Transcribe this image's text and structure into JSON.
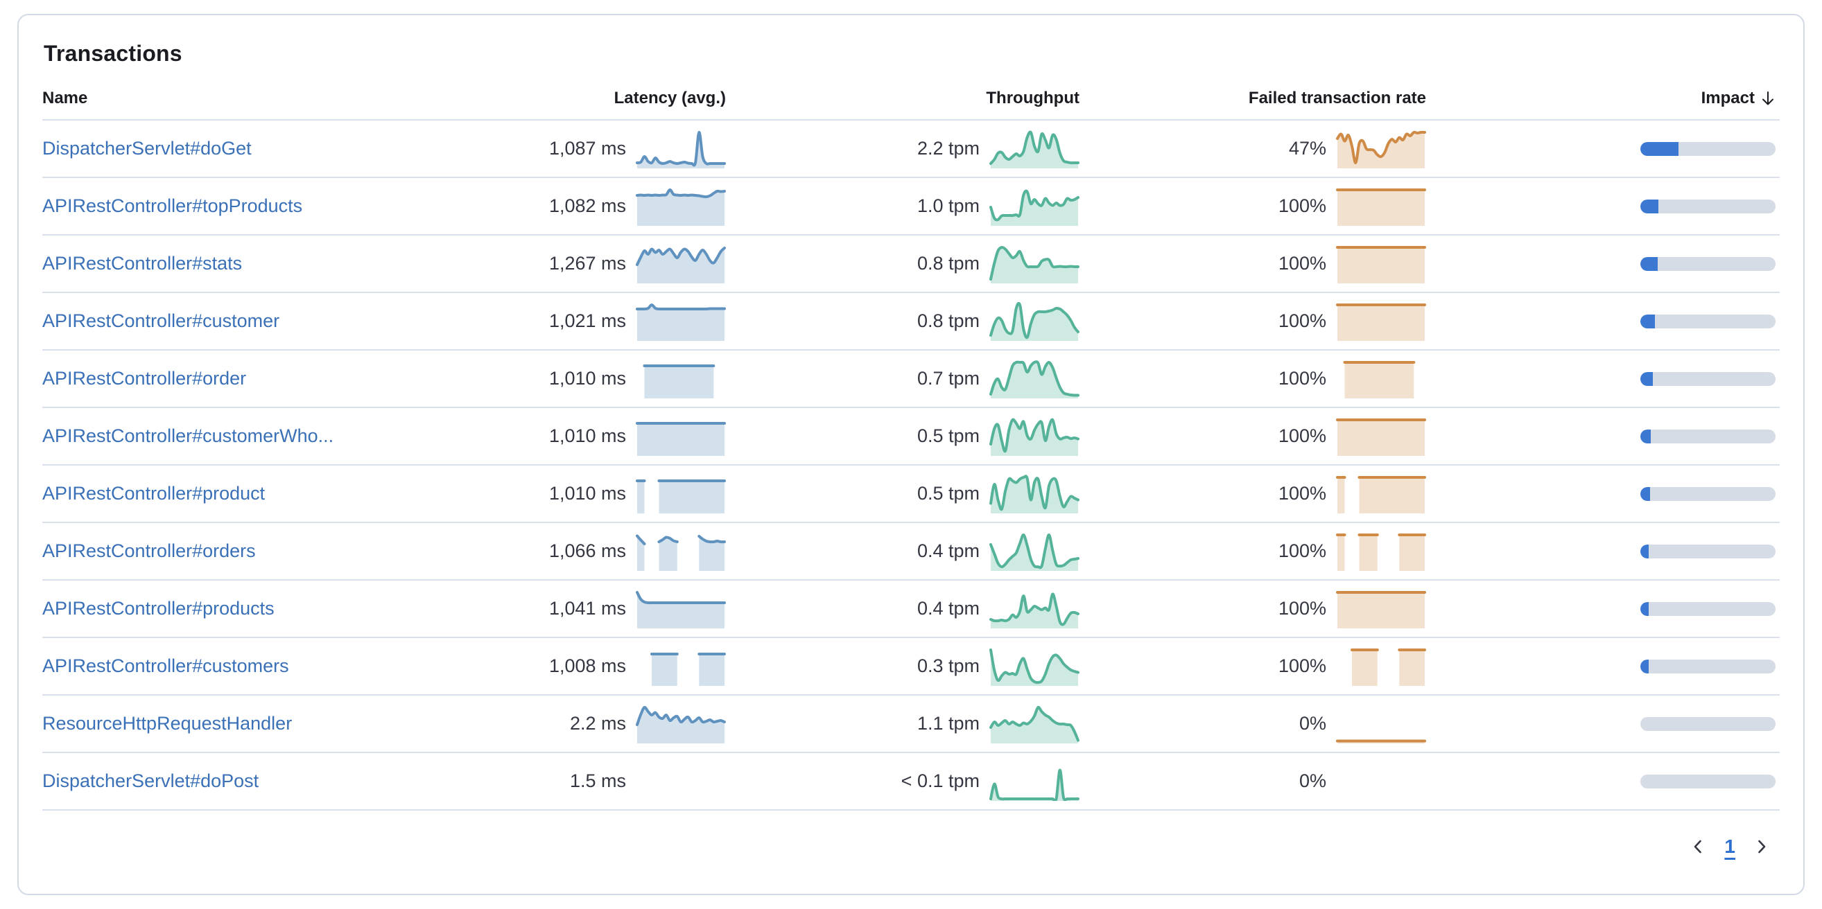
{
  "panel": {
    "title": "Transactions"
  },
  "table": {
    "columns": [
      {
        "label": "Name"
      },
      {
        "label": "Latency (avg.)"
      },
      {
        "label": "Throughput"
      },
      {
        "label": "Failed transaction rate"
      },
      {
        "label": "Impact",
        "sorted": "desc"
      }
    ],
    "rows": [
      {
        "name": "DispatcherServlet#doGet",
        "latency": {
          "value": "1,087 ms",
          "series": [
            0.12,
            0.14,
            0.3,
            0.16,
            0.12,
            0.26,
            0.14,
            0.1,
            0.12,
            0.16,
            0.12,
            0.1,
            0.12,
            0.14,
            0.11,
            0.1,
            0.12,
            1.0,
            0.3,
            0.1,
            0.1,
            0.1,
            0.1,
            0.1,
            0.1
          ]
        },
        "throughput": {
          "value": "2.2 tpm",
          "series": [
            0.1,
            0.22,
            0.4,
            0.42,
            0.28,
            0.22,
            0.3,
            0.38,
            0.32,
            0.45,
            0.85,
            1.0,
            0.6,
            0.45,
            0.95,
            0.78,
            0.55,
            0.92,
            0.8,
            0.4,
            0.18,
            0.14,
            0.12,
            0.12,
            0.12
          ]
        },
        "failed_rate": {
          "value": "47%",
          "series": [
            0.82,
            0.95,
            0.75,
            0.92,
            0.6,
            0.12,
            0.68,
            0.75,
            0.52,
            0.5,
            0.48,
            0.35,
            0.3,
            0.42,
            0.68,
            0.8,
            0.72,
            0.85,
            0.78,
            0.95,
            0.9,
            1.0,
            0.98,
            1.0,
            1.0
          ]
        },
        "impact_pct": 28
      },
      {
        "name": "APIRestController#topProducts",
        "latency": {
          "value": "1,082 ms",
          "series": [
            0.84,
            0.85,
            0.84,
            0.85,
            0.84,
            0.85,
            0.84,
            0.85,
            0.86,
            1.0,
            0.87,
            0.85,
            0.84,
            0.85,
            0.84,
            0.85,
            0.84,
            0.83,
            0.81,
            0.8,
            0.83,
            0.9,
            0.96,
            0.95,
            0.96
          ]
        },
        "throughput": {
          "value": "1.0 tpm",
          "series": [
            0.5,
            0.18,
            0.14,
            0.25,
            0.26,
            0.26,
            0.26,
            0.28,
            0.28,
            0.85,
            0.95,
            0.6,
            0.72,
            0.6,
            0.55,
            0.75,
            0.62,
            0.55,
            0.62,
            0.55,
            0.58,
            0.75,
            0.7,
            0.72,
            0.78
          ]
        },
        "failed_rate": {
          "value": "100%",
          "series": [
            1,
            1,
            1,
            1,
            1,
            1,
            1,
            1,
            1,
            1,
            1,
            1,
            1,
            1,
            1,
            1,
            1,
            1,
            1,
            1,
            1,
            1,
            1,
            1,
            1
          ]
        },
        "impact_pct": 13.5
      },
      {
        "name": "APIRestController#stats",
        "latency": {
          "value": "1,267 ms",
          "series": [
            0.5,
            0.72,
            0.9,
            0.8,
            0.95,
            0.85,
            0.92,
            0.8,
            0.88,
            0.95,
            0.82,
            0.7,
            0.86,
            0.95,
            0.88,
            0.72,
            0.62,
            0.8,
            0.92,
            0.8,
            0.62,
            0.55,
            0.7,
            0.88,
            0.98
          ]
        },
        "throughput": {
          "value": "0.8 tpm",
          "series": [
            0.08,
            0.55,
            0.9,
            1.0,
            0.95,
            0.82,
            0.7,
            0.76,
            0.88,
            0.62,
            0.45,
            0.44,
            0.44,
            0.45,
            0.6,
            0.65,
            0.64,
            0.45,
            0.44,
            0.45,
            0.44,
            0.44,
            0.45,
            0.44,
            0.44
          ]
        },
        "failed_rate": {
          "value": "100%",
          "series": [
            1,
            1,
            1,
            1,
            1,
            1,
            1,
            1,
            1,
            1,
            1,
            1,
            1,
            1,
            1,
            1,
            1,
            1,
            1,
            1,
            1,
            1,
            1,
            1,
            1
          ]
        },
        "impact_pct": 13
      },
      {
        "name": "APIRestController#customer",
        "latency": {
          "value": "1,021 ms",
          "series": [
            0.88,
            0.88,
            0.88,
            0.9,
            1.0,
            0.9,
            0.88,
            0.88,
            0.88,
            0.88,
            0.88,
            0.88,
            0.88,
            0.88,
            0.88,
            0.88,
            0.88,
            0.88,
            0.88,
            0.88,
            0.89,
            0.89,
            0.89,
            0.89,
            0.89
          ]
        },
        "throughput": {
          "value": "0.8 tpm",
          "series": [
            0.12,
            0.45,
            0.62,
            0.55,
            0.3,
            0.18,
            0.25,
            0.9,
            1.0,
            0.3,
            0.06,
            0.45,
            0.72,
            0.8,
            0.8,
            0.8,
            0.82,
            0.85,
            0.9,
            0.88,
            0.8,
            0.7,
            0.55,
            0.35,
            0.22
          ]
        },
        "failed_rate": {
          "value": "100%",
          "series": [
            1,
            1,
            1,
            1,
            1,
            1,
            1,
            1,
            1,
            1,
            1,
            1,
            1,
            1,
            1,
            1,
            1,
            1,
            1,
            1,
            1,
            1,
            1,
            1,
            1
          ]
        },
        "impact_pct": 11
      },
      {
        "name": "APIRestController#order",
        "latency": {
          "value": "1,010 ms",
          "series": [
            null,
            null,
            0.9,
            0.9,
            0.9,
            0.9,
            0.9,
            0.9,
            0.9,
            0.9,
            0.9,
            0.9,
            0.9,
            0.9,
            0.9,
            0.9,
            0.9,
            0.9,
            0.9,
            0.9,
            0.9,
            0.9,
            null,
            null,
            null
          ]
        },
        "throughput": {
          "value": "0.7 tpm",
          "series": [
            0.08,
            0.4,
            0.52,
            0.28,
            0.22,
            0.55,
            0.9,
            1.0,
            1.0,
            0.98,
            0.72,
            0.9,
            1.0,
            0.98,
            0.65,
            0.88,
            1.0,
            0.85,
            0.55,
            0.28,
            0.12,
            0.08,
            0.06,
            0.05,
            0.05
          ]
        },
        "failed_rate": {
          "value": "100%",
          "series": [
            null,
            null,
            1,
            1,
            1,
            1,
            1,
            1,
            1,
            1,
            1,
            1,
            1,
            1,
            1,
            1,
            1,
            1,
            1,
            1,
            1,
            1,
            null,
            null,
            null
          ]
        },
        "impact_pct": 9
      },
      {
        "name": "APIRestController#customerWho...",
        "latency": {
          "value": "1,010 ms",
          "series": [
            0.9,
            0.9,
            0.9,
            0.9,
            0.9,
            0.9,
            0.9,
            0.9,
            0.9,
            0.9,
            0.9,
            0.9,
            0.9,
            0.9,
            0.9,
            0.9,
            0.9,
            0.9,
            0.9,
            0.9,
            0.9,
            0.9,
            0.9,
            0.9,
            0.9
          ]
        },
        "throughput": {
          "value": "0.5 tpm",
          "series": [
            0.3,
            0.75,
            0.85,
            0.4,
            0.1,
            0.7,
            1.0,
            0.9,
            0.75,
            0.95,
            0.55,
            0.45,
            0.7,
            0.88,
            0.92,
            0.4,
            0.8,
            1.0,
            0.6,
            0.45,
            0.48,
            0.5,
            0.46,
            0.48,
            0.45
          ]
        },
        "failed_rate": {
          "value": "100%",
          "series": [
            1,
            1,
            1,
            1,
            1,
            1,
            1,
            1,
            1,
            1,
            1,
            1,
            1,
            1,
            1,
            1,
            1,
            1,
            1,
            1,
            1,
            1,
            1,
            1,
            1
          ]
        },
        "impact_pct": 7.5
      },
      {
        "name": "APIRestController#product",
        "latency": {
          "value": "1,010 ms",
          "series": [
            0.9,
            0.9,
            0.9,
            null,
            null,
            null,
            0.9,
            0.9,
            0.9,
            0.9,
            0.9,
            0.9,
            0.9,
            0.9,
            0.9,
            0.9,
            0.9,
            0.9,
            0.9,
            0.9,
            0.9,
            0.9,
            0.9,
            0.9,
            0.9
          ]
        },
        "throughput": {
          "value": "0.5 tpm",
          "series": [
            0.25,
            0.8,
            0.35,
            0.08,
            0.6,
            0.95,
            0.9,
            0.85,
            0.95,
            1.0,
            0.98,
            0.35,
            0.85,
            0.95,
            0.45,
            0.12,
            0.75,
            0.95,
            0.9,
            0.45,
            0.15,
            0.3,
            0.45,
            0.4,
            0.35
          ]
        },
        "failed_rate": {
          "value": "100%",
          "series": [
            1,
            1,
            1,
            null,
            null,
            null,
            1,
            1,
            1,
            1,
            1,
            1,
            1,
            1,
            1,
            1,
            1,
            1,
            1,
            1,
            1,
            1,
            1,
            1,
            1
          ]
        },
        "impact_pct": 7
      },
      {
        "name": "APIRestController#orders",
        "latency": {
          "value": "1,066 ms",
          "series": [
            0.97,
            0.85,
            0.74,
            null,
            null,
            null,
            0.8,
            0.86,
            0.93,
            0.9,
            0.83,
            0.8,
            null,
            null,
            null,
            null,
            null,
            0.96,
            0.88,
            0.82,
            0.8,
            0.8,
            0.82,
            0.8,
            0.8
          ]
        },
        "throughput": {
          "value": "0.4 tpm",
          "series": [
            0.72,
            0.45,
            0.18,
            0.08,
            0.15,
            0.28,
            0.38,
            0.48,
            0.75,
            1.0,
            0.7,
            0.3,
            0.1,
            0.08,
            0.1,
            0.6,
            1.0,
            0.55,
            0.15,
            0.1,
            0.12,
            0.2,
            0.28,
            0.3,
            0.32
          ]
        },
        "failed_rate": {
          "value": "100%",
          "series": [
            1,
            1,
            1,
            null,
            null,
            null,
            1,
            1,
            1,
            1,
            1,
            1,
            null,
            null,
            null,
            null,
            null,
            1,
            1,
            1,
            1,
            1,
            1,
            1,
            1
          ]
        },
        "impact_pct": 6
      },
      {
        "name": "APIRestController#products",
        "latency": {
          "value": "1,041 ms",
          "series": [
            1.0,
            0.8,
            0.72,
            0.7,
            0.7,
            0.7,
            0.7,
            0.7,
            0.7,
            0.7,
            0.7,
            0.7,
            0.7,
            0.7,
            0.7,
            0.7,
            0.7,
            0.7,
            0.7,
            0.7,
            0.7,
            0.7,
            0.7,
            0.7,
            0.7
          ]
        },
        "throughput": {
          "value": "0.4 tpm",
          "series": [
            0.22,
            0.18,
            0.18,
            0.2,
            0.18,
            0.22,
            0.35,
            0.28,
            0.45,
            0.9,
            0.45,
            0.5,
            0.6,
            0.55,
            0.5,
            0.55,
            0.5,
            0.95,
            0.6,
            0.15,
            0.08,
            0.25,
            0.4,
            0.42,
            0.38
          ]
        },
        "failed_rate": {
          "value": "100%",
          "series": [
            1,
            1,
            1,
            1,
            1,
            1,
            1,
            1,
            1,
            1,
            1,
            1,
            1,
            1,
            1,
            1,
            1,
            1,
            1,
            1,
            1,
            1,
            1,
            1,
            1
          ]
        },
        "impact_pct": 5.5
      },
      {
        "name": "APIRestController#customers",
        "latency": {
          "value": "1,008 ms",
          "series": [
            null,
            null,
            null,
            null,
            0.88,
            0.88,
            0.88,
            0.88,
            0.88,
            0.88,
            0.88,
            0.88,
            null,
            null,
            null,
            null,
            null,
            0.88,
            0.88,
            0.88,
            0.88,
            0.88,
            0.88,
            0.88,
            0.88
          ]
        },
        "throughput": {
          "value": "0.3 tpm",
          "series": [
            1.0,
            0.4,
            0.12,
            0.25,
            0.35,
            0.3,
            0.32,
            0.3,
            0.6,
            0.75,
            0.45,
            0.18,
            0.08,
            0.06,
            0.1,
            0.3,
            0.6,
            0.8,
            0.85,
            0.75,
            0.6,
            0.5,
            0.42,
            0.38,
            0.35
          ]
        },
        "failed_rate": {
          "value": "100%",
          "series": [
            null,
            null,
            null,
            null,
            1,
            1,
            1,
            1,
            1,
            1,
            1,
            1,
            null,
            null,
            null,
            null,
            null,
            1,
            1,
            1,
            1,
            1,
            1,
            1,
            1
          ]
        },
        "impact_pct": 5
      },
      {
        "name": "ResourceHttpRequestHandler",
        "latency": {
          "value": "2.2 ms",
          "series": [
            0.5,
            0.8,
            1.0,
            0.88,
            0.78,
            0.85,
            0.72,
            0.68,
            0.78,
            0.62,
            0.7,
            0.74,
            0.58,
            0.66,
            0.72,
            0.58,
            0.62,
            0.7,
            0.58,
            0.6,
            0.64,
            0.58,
            0.6,
            0.62,
            0.58
          ]
        },
        "throughput": {
          "value": "1.1 tpm",
          "series": [
            0.42,
            0.58,
            0.48,
            0.55,
            0.62,
            0.52,
            0.58,
            0.52,
            0.48,
            0.55,
            0.52,
            0.6,
            0.75,
            1.0,
            0.88,
            0.78,
            0.72,
            0.62,
            0.55,
            0.52,
            0.52,
            0.5,
            0.48,
            0.3,
            0.05
          ]
        },
        "failed_rate": {
          "value": "0%",
          "series": [
            0.03,
            0.03,
            0.03,
            0.03,
            0.03,
            0.03,
            0.03,
            0.03,
            0.03,
            0.03,
            0.03,
            0.03,
            0.03,
            0.03,
            0.03,
            0.03,
            0.03,
            0.03,
            0.03,
            0.03,
            0.03,
            0.03,
            0.03,
            0.03,
            0.03
          ]
        },
        "impact_pct": 0
      },
      {
        "name": "DispatcherServlet#doPost",
        "latency": {
          "value": "1.5 ms",
          "series": null
        },
        "throughput": {
          "value": "< 0.1 tpm",
          "series": [
            0.02,
            0.45,
            0.08,
            0.02,
            0.02,
            0.02,
            0.02,
            0.02,
            0.02,
            0.02,
            0.02,
            0.02,
            0.02,
            0.02,
            0.02,
            0.02,
            0.02,
            0.02,
            0.02,
            0.85,
            0.06,
            0.02,
            0.02,
            0.02,
            0.02
          ]
        },
        "failed_rate": {
          "value": "0%",
          "series": null
        },
        "impact_pct": 0
      }
    ]
  },
  "pagination": {
    "current_page": "1"
  },
  "colors": {
    "link": "#3a70b7",
    "text": "#343741",
    "heading": "#1a1c21",
    "divider": "#dbe1ec",
    "panel_border": "#d3dae6",
    "latency_line": "#6092c0",
    "latency_fill": "rgba(96,146,192,0.28)",
    "throughput_line": "#54b399",
    "throughput_fill": "rgba(84,179,153,0.28)",
    "failed_line": "#cf8a45",
    "failed_fill": "rgba(207,138,69,0.26)",
    "impact_fill": "#3b78d2",
    "impact_track": "#d6dce6",
    "page_number": "#2e70d0"
  }
}
